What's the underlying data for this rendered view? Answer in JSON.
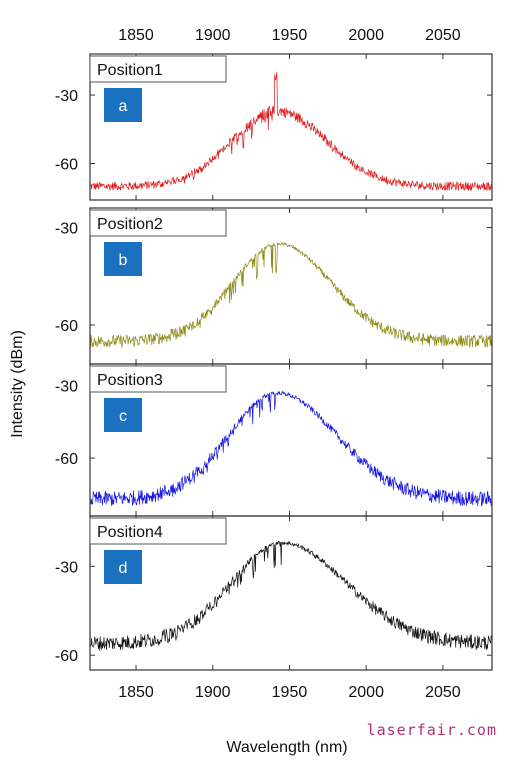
{
  "chart_data": {
    "type": "line",
    "xlabel": "Wavelength (nm)",
    "ylabel": "Intensity (dBm)",
    "xlim": [
      1820,
      2082
    ],
    "x_ticks": [
      "1850",
      "1900",
      "1950",
      "2000",
      "2050"
    ],
    "x_tick_values": [
      1850,
      1900,
      1950,
      2000,
      2050
    ],
    "panels": [
      {
        "name": "Position1",
        "badge": "a",
        "color": "#dd1c1c",
        "ylim": [
          -76,
          -12
        ],
        "y_ticks": [
          "-30",
          "-60"
        ],
        "y_tick_values": [
          -30,
          -60
        ],
        "noise_floor": -70,
        "peak_level": -37,
        "peak_wavelength": 1942,
        "spike": {
          "x": 1941,
          "y": -24
        },
        "fwhm_edges": [
          1875,
          2015
        ]
      },
      {
        "name": "Position2",
        "badge": "b",
        "color": "#8c8a14",
        "ylim": [
          -72,
          -24
        ],
        "y_ticks": [
          "-30",
          "-60"
        ],
        "y_tick_values": [
          -30,
          -60
        ],
        "noise_floor": -65,
        "peak_level": -35,
        "peak_wavelength": 1943,
        "fwhm_edges": [
          1875,
          2020
        ]
      },
      {
        "name": "Position3",
        "badge": "c",
        "color": "#1515e0",
        "ylim": [
          -84,
          -21
        ],
        "y_ticks": [
          "-30",
          "-60"
        ],
        "y_tick_values": [
          -30,
          -60
        ],
        "noise_floor": -77,
        "peak_level": -33,
        "peak_wavelength": 1942,
        "fwhm_edges": [
          1870,
          2030
        ]
      },
      {
        "name": "Position4",
        "badge": "d",
        "color": "#111111",
        "ylim": [
          -65,
          -13
        ],
        "y_ticks": [
          "-30",
          "-60"
        ],
        "y_tick_values": [
          -30,
          -60
        ],
        "noise_floor": -56,
        "peak_level": -22,
        "peak_wavelength": 1945,
        "fwhm_edges": [
          1870,
          2040
        ]
      }
    ]
  },
  "badge_color": "#1a71c0",
  "watermark": "laserfair.com"
}
